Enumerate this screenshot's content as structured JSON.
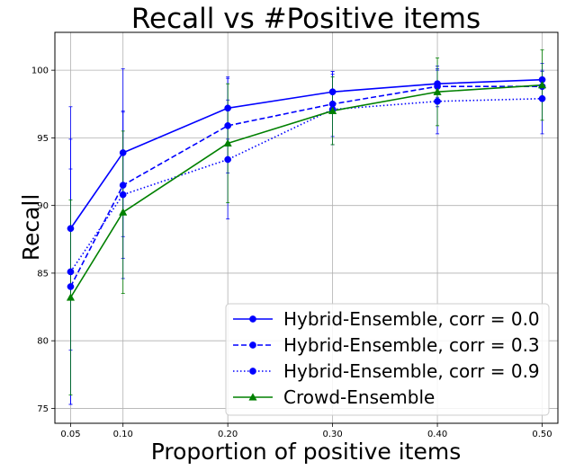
{
  "chart_data": {
    "type": "line",
    "title": "Recall vs #Positive items",
    "xlabel": "Proportion of positive items",
    "ylabel": "Recall",
    "x": [
      0.05,
      0.1,
      0.2,
      0.3,
      0.4,
      0.5
    ],
    "x_tick_labels": [
      "0.05",
      "0.10",
      "0.20",
      "0.30",
      "0.40",
      "0.50"
    ],
    "y_ticks": [
      75,
      80,
      85,
      90,
      95,
      100
    ],
    "y_tick_labels": [
      "75",
      "80",
      "85",
      "90",
      "95",
      "100"
    ],
    "xlim": [
      0.035,
      0.515
    ],
    "ylim": [
      73.9,
      102.8
    ],
    "grid": true,
    "legend_position": "lower-right",
    "series": [
      {
        "name": "Hybrid-Ensemble, corr = 0.0",
        "color": "#0000ff",
        "line_style": "solid",
        "marker": "circle",
        "values": [
          88.3,
          93.9,
          97.2,
          98.4,
          99.0,
          99.3
        ],
        "error": [
          9.0,
          6.2,
          2.3,
          1.5,
          1.0,
          0.7
        ]
      },
      {
        "name": "Hybrid-Ensemble, corr = 0.3",
        "color": "#0000ff",
        "line_style": "dashed",
        "marker": "circle",
        "values": [
          84.0,
          91.5,
          95.9,
          97.5,
          98.8,
          98.8
        ],
        "error": [
          8.7,
          5.4,
          3.5,
          2.4,
          1.5,
          1.1
        ]
      },
      {
        "name": "Hybrid-Ensemble, corr = 0.9",
        "color": "#0000ff",
        "line_style": "dotted",
        "marker": "circle",
        "values": [
          85.1,
          90.8,
          93.4,
          97.1,
          97.7,
          97.9
        ],
        "error": [
          9.8,
          6.2,
          4.4,
          2.6,
          2.4,
          2.6
        ]
      },
      {
        "name": "Crowd-Ensemble",
        "color": "#008000",
        "line_style": "solid",
        "marker": "triangle",
        "values": [
          83.2,
          89.5,
          94.6,
          97.0,
          98.4,
          98.9
        ],
        "error": [
          7.2,
          6.0,
          4.4,
          2.5,
          2.5,
          2.6
        ]
      }
    ]
  }
}
